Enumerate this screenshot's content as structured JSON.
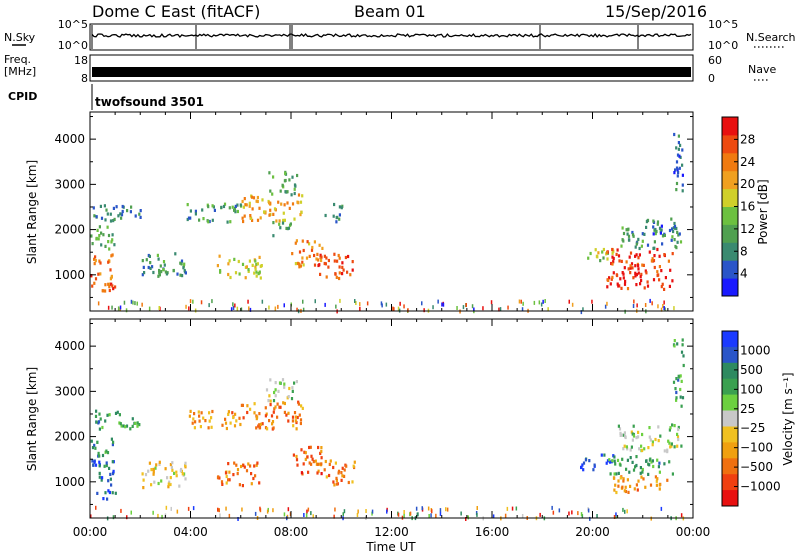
{
  "header": {
    "station": "Dome C East (fitACF)",
    "beam": "Beam 01",
    "date": "15/Sep/2016"
  },
  "strips": {
    "nsky_label": "N.Sky",
    "nsearch_label": "N.Search",
    "freq_label_1": "Freq.",
    "freq_label_2": "[MHz]",
    "nave_label": "Nave",
    "cpid_label": "CPID",
    "cpid_value": "twofsound 3501",
    "noise_left_ticks": [
      "10^5",
      "10^0"
    ],
    "noise_right_ticks": [
      "10^5",
      "10^0"
    ],
    "freq_left_ticks": [
      "18",
      "8"
    ],
    "freq_right_ticks": [
      "60",
      "0"
    ]
  },
  "chart_data": [
    {
      "type": "heatmap",
      "panel": "power",
      "ylabel": "Slant Range [km]",
      "ylim": [
        200,
        4600
      ],
      "yticks": [
        1000,
        2000,
        3000,
        4000
      ],
      "xlim": [
        0,
        24
      ],
      "colorbar": {
        "label": "Power [dB]",
        "range": [
          0,
          32
        ],
        "ticks": [
          4,
          8,
          12,
          16,
          20,
          24,
          28
        ],
        "colors": [
          "#1a1aff",
          "#2a55c8",
          "#3a8a70",
          "#50a050",
          "#6cc040",
          "#cfd02a",
          "#f0a020",
          "#f07a10",
          "#ee4a10",
          "#e81010"
        ]
      },
      "regions": [
        {
          "t0": 0.0,
          "t1": 1.0,
          "r0": 650,
          "r1": 1500,
          "level": 0.8
        },
        {
          "t0": 0.0,
          "t1": 1.0,
          "r0": 1600,
          "r1": 2100,
          "level": 0.35
        },
        {
          "t0": 0.1,
          "t1": 2.0,
          "r0": 2200,
          "r1": 2600,
          "level": 0.25
        },
        {
          "t0": 2.0,
          "t1": 3.8,
          "r0": 900,
          "r1": 1500,
          "level": 0.3
        },
        {
          "t0": 3.8,
          "t1": 6.0,
          "r0": 2200,
          "r1": 2600,
          "level": 0.3
        },
        {
          "t0": 5.0,
          "t1": 6.8,
          "r0": 950,
          "r1": 1450,
          "level": 0.55
        },
        {
          "t0": 6.0,
          "t1": 8.5,
          "r0": 2200,
          "r1": 2800,
          "level": 0.65
        },
        {
          "t0": 7.0,
          "t1": 8.2,
          "r0": 2800,
          "r1": 3300,
          "level": 0.35
        },
        {
          "t0": 7.2,
          "t1": 8.0,
          "r0": 1900,
          "r1": 2200,
          "level": 0.35
        },
        {
          "t0": 8.0,
          "t1": 9.3,
          "r0": 1200,
          "r1": 1800,
          "level": 0.7
        },
        {
          "t0": 9.0,
          "t1": 10.5,
          "r0": 950,
          "r1": 1500,
          "level": 0.85
        },
        {
          "t0": 9.3,
          "t1": 10.0,
          "r0": 2200,
          "r1": 2600,
          "level": 0.3
        },
        {
          "t0": 19.5,
          "t1": 20.8,
          "r0": 1300,
          "r1": 1600,
          "level": 0.5
        },
        {
          "t0": 20.5,
          "t1": 23.2,
          "r0": 700,
          "r1": 1600,
          "level": 0.9
        },
        {
          "t0": 21.0,
          "t1": 23.5,
          "r0": 1600,
          "r1": 2100,
          "level": 0.3
        },
        {
          "t0": 22.0,
          "t1": 23.4,
          "r0": 1900,
          "r1": 2300,
          "level": 0.2
        },
        {
          "t0": 23.2,
          "t1": 23.6,
          "r0": 2700,
          "r1": 4200,
          "level": 0.2
        }
      ]
    },
    {
      "type": "heatmap",
      "panel": "velocity",
      "ylabel": "Slant Range [km]",
      "xlabel": "Time UT",
      "ylim": [
        200,
        4600
      ],
      "yticks": [
        1000,
        2000,
        3000,
        4000
      ],
      "xlim": [
        0,
        24
      ],
      "xticks": [
        "00:00",
        "04:00",
        "08:00",
        "12:00",
        "16:00",
        "20:00",
        "00:00"
      ],
      "colorbar": {
        "label": "Velocity [m s⁻¹]",
        "ticks": [
          "1000",
          "500",
          "100",
          "25",
          "−25",
          "−100",
          "−500",
          "−1000"
        ],
        "colors": [
          "#1a3aff",
          "#2a55c8",
          "#2e8a60",
          "#3aa050",
          "#6cd040",
          "#c8c8c8",
          "#f0c020",
          "#f0a010",
          "#f07010",
          "#f04010",
          "#e81010"
        ]
      },
      "regions": [
        {
          "t0": 0.0,
          "t1": 1.0,
          "r0": 650,
          "r1": 1500,
          "level": 0.15
        },
        {
          "t0": 0.0,
          "t1": 1.0,
          "r0": 1600,
          "r1": 2000,
          "level": 0.25
        },
        {
          "t0": 0.1,
          "t1": 2.0,
          "r0": 2200,
          "r1": 2600,
          "level": 0.3
        },
        {
          "t0": 2.0,
          "t1": 3.8,
          "r0": 900,
          "r1": 1500,
          "level": 0.55
        },
        {
          "t0": 3.8,
          "t1": 6.0,
          "r0": 2200,
          "r1": 2600,
          "level": 0.7
        },
        {
          "t0": 5.0,
          "t1": 6.8,
          "r0": 950,
          "r1": 1450,
          "level": 0.75
        },
        {
          "t0": 6.0,
          "t1": 8.5,
          "r0": 2200,
          "r1": 2800,
          "level": 0.75
        },
        {
          "t0": 7.0,
          "t1": 8.2,
          "r0": 2800,
          "r1": 3300,
          "level": 0.45
        },
        {
          "t0": 8.0,
          "t1": 9.3,
          "r0": 1200,
          "r1": 1800,
          "level": 0.78
        },
        {
          "t0": 9.0,
          "t1": 10.5,
          "r0": 950,
          "r1": 1500,
          "level": 0.75
        },
        {
          "t0": 19.5,
          "t1": 20.8,
          "r0": 1300,
          "r1": 1650,
          "level": 0.08
        },
        {
          "t0": 20.5,
          "t1": 23.2,
          "r0": 1200,
          "r1": 1600,
          "level": 0.3
        },
        {
          "t0": 20.8,
          "t1": 23.0,
          "r0": 750,
          "r1": 1150,
          "level": 0.7
        },
        {
          "t0": 21.0,
          "t1": 23.5,
          "r0": 1700,
          "r1": 2300,
          "level": 0.45
        },
        {
          "t0": 23.2,
          "t1": 23.6,
          "r0": 2700,
          "r1": 4200,
          "level": 0.3
        }
      ]
    }
  ]
}
